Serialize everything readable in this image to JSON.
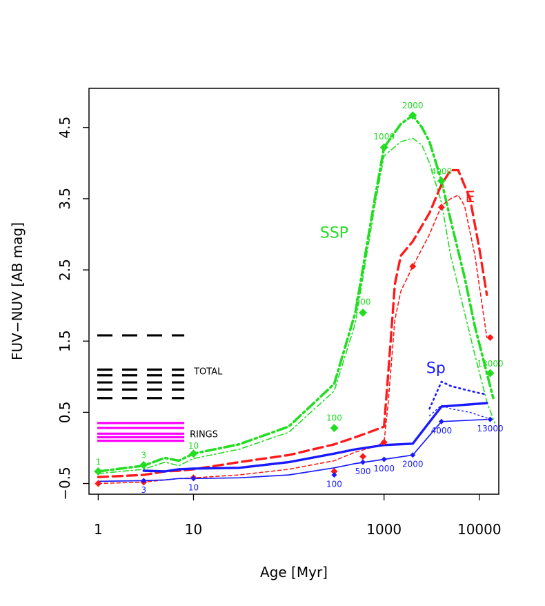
{
  "chart_data": {
    "type": "line",
    "xlabel": "Age [Myr]",
    "ylabel": "FUV−NUV [AB mag]",
    "xscale": "log",
    "xlim": [
      0.8,
      16000
    ],
    "ylim": [
      -0.65,
      5.05
    ],
    "x_ticks": [
      1,
      10,
      1000,
      10000
    ],
    "x_tick_labels": [
      "1",
      "10",
      "1000",
      "10000"
    ],
    "y_ticks": [
      -0.5,
      0.5,
      1.5,
      2.5,
      3.5,
      4.5
    ],
    "y_tick_labels": [
      "−0.5",
      "0.5",
      "1.5",
      "2.5",
      "3.5",
      "4.5"
    ],
    "grid": false,
    "colors": {
      "ssp": "#22dd22",
      "e": "#ff1a1a",
      "sp": "#1a1aff",
      "total": "#000000",
      "rings": "#ff00ff"
    },
    "series": [
      {
        "key": "ssp_thick",
        "style": "dotdash-thick",
        "color": "#22dd22",
        "x": [
          1,
          3,
          5,
          7,
          10,
          30,
          100,
          300,
          500,
          800,
          1000,
          1500,
          2000,
          2500,
          3000,
          4000,
          5000,
          7000,
          9000,
          12000,
          14000
        ],
        "y": [
          -0.33,
          -0.25,
          -0.14,
          -0.18,
          -0.08,
          0.05,
          0.3,
          0.9,
          1.9,
          3.5,
          4.22,
          4.55,
          4.67,
          4.5,
          4.3,
          3.75,
          3.2,
          2.4,
          1.7,
          1.05,
          0.7
        ]
      },
      {
        "key": "ssp_thin",
        "style": "dotdash-thin",
        "color": "#22dd22",
        "x": [
          1,
          3,
          5,
          7,
          10,
          30,
          100,
          300,
          500,
          800,
          1000,
          1500,
          2000,
          2500,
          3000,
          4000,
          5000,
          7000,
          9000,
          12000,
          14500
        ],
        "y": [
          -0.36,
          -0.3,
          -0.2,
          -0.25,
          -0.15,
          -0.02,
          0.22,
          0.8,
          1.75,
          3.4,
          4.1,
          4.3,
          4.35,
          4.25,
          4.0,
          3.45,
          2.7,
          1.9,
          1.3,
          0.65,
          0.35
        ]
      },
      {
        "key": "e_thick",
        "style": "dashed-thick",
        "color": "#ff1a1a",
        "x": [
          1,
          3,
          5,
          7,
          10,
          30,
          100,
          300,
          500,
          800,
          1000,
          1100,
          1300,
          1500,
          2000,
          3000,
          4000,
          5000,
          6000,
          8000,
          10000,
          12000
        ],
        "y": [
          -0.41,
          -0.38,
          -0.33,
          -0.32,
          -0.3,
          -0.2,
          -0.1,
          0.05,
          0.15,
          0.25,
          0.3,
          1.0,
          2.3,
          2.7,
          2.9,
          3.3,
          3.7,
          3.9,
          3.9,
          3.5,
          2.8,
          2.15
        ]
      },
      {
        "key": "e_thin",
        "style": "dashed-thin",
        "color": "#ff1a1a",
        "x": [
          1,
          3,
          5,
          7,
          10,
          30,
          100,
          300,
          500,
          800,
          1000,
          1100,
          1300,
          1500,
          2000,
          3000,
          4000,
          5000,
          6000,
          7000,
          9000,
          12000
        ],
        "y": [
          -0.5,
          -0.48,
          -0.45,
          -0.43,
          -0.42,
          -0.38,
          -0.3,
          -0.18,
          -0.06,
          0.02,
          0.08,
          0.6,
          1.8,
          2.2,
          2.55,
          3.0,
          3.4,
          3.5,
          3.55,
          3.4,
          2.7,
          1.55
        ]
      },
      {
        "key": "sp_thick",
        "style": "solid-thick",
        "color": "#1a1aff",
        "x": [
          3,
          5,
          7,
          10,
          30,
          100,
          300,
          500,
          1000,
          2000,
          4000,
          12000
        ],
        "y": [
          -0.32,
          -0.33,
          -0.3,
          -0.29,
          -0.28,
          -0.2,
          -0.08,
          -0.02,
          0.04,
          0.06,
          0.58,
          0.63
        ]
      },
      {
        "key": "sp_thin",
        "style": "solid-thin",
        "color": "#1a1aff",
        "x": [
          1,
          3,
          5,
          7,
          10,
          30,
          100,
          300,
          500,
          1000,
          2000,
          4000,
          12000
        ],
        "y": [
          -0.47,
          -0.46,
          -0.45,
          -0.43,
          -0.43,
          -0.42,
          -0.38,
          -0.28,
          -0.22,
          -0.16,
          -0.1,
          0.37,
          0.4
        ]
      },
      {
        "key": "sp_dot1",
        "style": "dotted",
        "color": "#1a1aff",
        "x": [
          3000,
          4000,
          5000,
          7000,
          10000,
          12000
        ],
        "y": [
          0.55,
          0.93,
          0.87,
          0.82,
          0.77,
          0.75
        ]
      },
      {
        "key": "sp_dot2",
        "style": "dotted-thin",
        "color": "#1a1aff",
        "x": [
          3000,
          4000,
          5000,
          8000,
          12000,
          14000
        ],
        "y": [
          0.45,
          0.6,
          0.55,
          0.5,
          0.42,
          0.38
        ]
      }
    ],
    "markers": [
      {
        "color": "#22dd22",
        "size": 6,
        "x": [
          1,
          3,
          10,
          300,
          600,
          1000,
          2000,
          4000,
          13000
        ],
        "y": [
          -0.33,
          -0.24,
          -0.08,
          0.28,
          1.9,
          4.22,
          4.67,
          3.75,
          1.05
        ]
      },
      {
        "color": "#ff1a1a",
        "size": 5,
        "x": [
          1,
          3,
          10,
          300,
          600,
          1000,
          2000,
          4000,
          13000
        ],
        "y": [
          -0.5,
          -0.48,
          -0.42,
          -0.33,
          -0.12,
          0.08,
          2.55,
          3.38,
          1.55
        ]
      },
      {
        "color": "#1a1aff",
        "size": 4,
        "x": [
          3,
          10,
          300,
          600,
          1000,
          2000,
          4000,
          13000
        ],
        "y": [
          -0.46,
          -0.43,
          -0.38,
          -0.2,
          -0.16,
          -0.1,
          0.37,
          0.4
        ]
      }
    ],
    "point_labels": [
      {
        "text": "1",
        "x": 1,
        "y": -0.2,
        "color": "#22dd22"
      },
      {
        "text": "3",
        "x": 3,
        "y": -0.1,
        "color": "#22dd22"
      },
      {
        "text": "10",
        "x": 10,
        "y": 0.03,
        "color": "#22dd22"
      },
      {
        "text": "100",
        "x": 300,
        "y": 0.42,
        "color": "#22dd22"
      },
      {
        "text": "500",
        "x": 600,
        "y": 2.05,
        "color": "#22dd22"
      },
      {
        "text": "1000",
        "x": 1000,
        "y": 4.37,
        "color": "#22dd22"
      },
      {
        "text": "2000",
        "x": 2000,
        "y": 4.81,
        "color": "#22dd22"
      },
      {
        "text": "4000",
        "x": 4000,
        "y": 3.88,
        "color": "#22dd22"
      },
      {
        "text": "13000",
        "x": 13000,
        "y": 1.18,
        "color": "#22dd22"
      },
      {
        "text": "3",
        "x": 3,
        "y": -0.59,
        "color": "#1a1aff"
      },
      {
        "text": "10",
        "x": 10,
        "y": -0.56,
        "color": "#1a1aff"
      },
      {
        "text": "100",
        "x": 300,
        "y": -0.51,
        "color": "#1a1aff"
      },
      {
        "text": "500",
        "x": 600,
        "y": -0.33,
        "color": "#1a1aff"
      },
      {
        "text": "1000",
        "x": 1000,
        "y": -0.29,
        "color": "#1a1aff"
      },
      {
        "text": "2000",
        "x": 2000,
        "y": -0.23,
        "color": "#1a1aff"
      },
      {
        "text": "4000",
        "x": 4000,
        "y": 0.24,
        "color": "#1a1aff"
      },
      {
        "text": "13000",
        "x": 13000,
        "y": 0.27,
        "color": "#1a1aff"
      }
    ],
    "series_labels": [
      {
        "text": "SSP",
        "x": 300,
        "y": 2.95,
        "color": "#22dd22"
      },
      {
        "text": "E",
        "x": 8000,
        "y": 3.45,
        "color": "#ff1a1a"
      },
      {
        "text": "Sp",
        "x": 3500,
        "y": 1.05,
        "color": "#1a1aff"
      }
    ],
    "observed": {
      "x_range": [
        0.8,
        8
      ],
      "total": {
        "label": "TOTAL",
        "y": [
          1.58,
          1.1,
          1.02,
          0.92,
          0.82,
          0.7
        ]
      },
      "rings": {
        "label": "RINGS",
        "y": [
          0.35,
          0.28,
          0.2,
          0.15,
          0.1
        ]
      }
    }
  }
}
